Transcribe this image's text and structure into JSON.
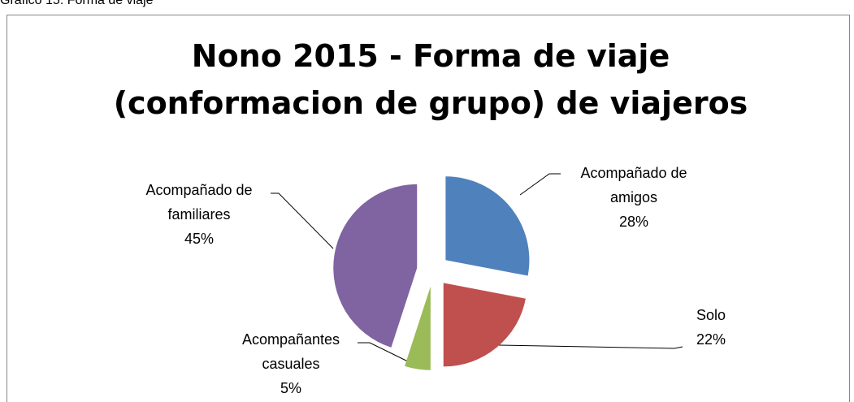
{
  "caption": "Grafico 15: Forma de viaje",
  "chart_data": {
    "type": "pie",
    "title": "Nono 2015 - Forma de viaje (conformacion de grupo) de viajeros",
    "categories": [
      "Acompañado de amigos",
      "Solo",
      "Acompañantes casuales",
      "Acompañado de familiares"
    ],
    "values": [
      28,
      22,
      5,
      45
    ],
    "value_labels": [
      "28%",
      "22%",
      "5%",
      "45%"
    ],
    "colors": [
      "#4f81bd",
      "#c0504d",
      "#9bbb59",
      "#8064a2"
    ]
  }
}
